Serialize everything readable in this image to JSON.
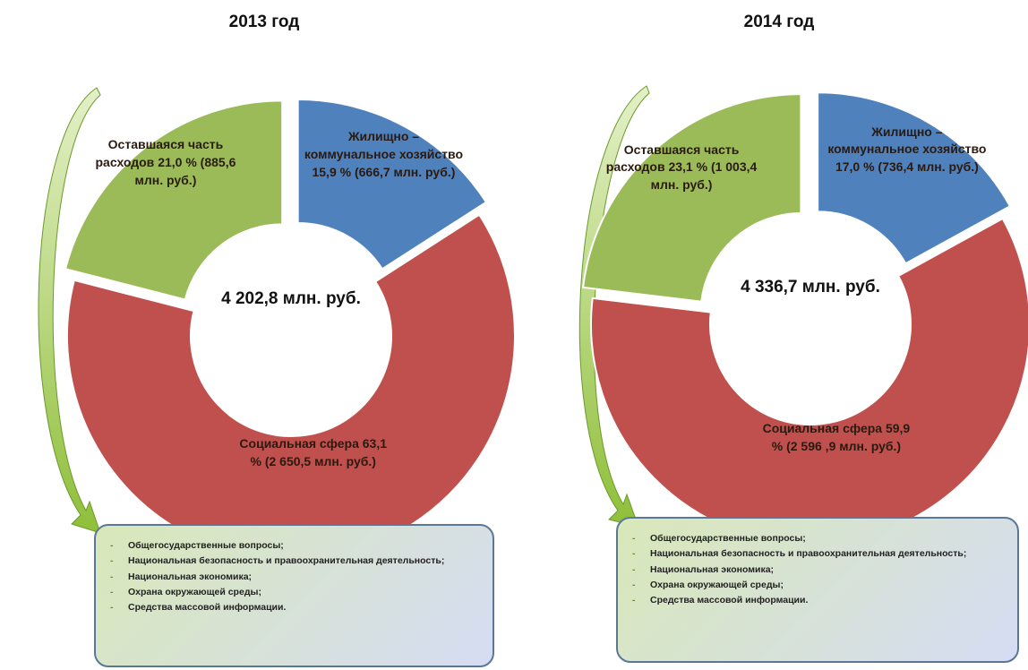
{
  "chart_data": [
    {
      "type": "donut",
      "title": "2013 год",
      "total": 4202.8,
      "total_label": "4 202,8 млн. руб.",
      "categories": [
        "Жилищно – коммунальное хозяйство",
        "Социальная сфера",
        "Оставшаяся часть расходов"
      ],
      "values": [
        15.9,
        63.1,
        21.0
      ],
      "value_labels": [
        "15,9 %",
        "63,1 %",
        "21,0 %"
      ],
      "amounts": [
        666.7,
        2650.5,
        885.6
      ],
      "amount_labels": [
        "(666,7 млн. руб.)",
        "(2 650,5 млн. руб.)",
        "(885,6 млн. руб.)"
      ],
      "colors": [
        "#4f81bd",
        "#c0504d",
        "#9bbb59"
      ],
      "details": [
        "Общегосударственные вопросы;",
        "Национальная безопасность и правоохранительная деятельность;",
        "Национальная экономика;",
        "Охрана окружающей среды;",
        "Средства массовой информации."
      ]
    },
    {
      "type": "donut",
      "title": "2014 год",
      "total": 4336.7,
      "total_label": "4 336,7 млн. руб.",
      "categories": [
        "Жилищно – коммунальное хозяйство",
        "Социальная сфера",
        "Оставшаяся часть расходов"
      ],
      "values": [
        17.0,
        59.9,
        23.1
      ],
      "value_labels": [
        "17,0 %",
        "59,9 %",
        "23,1 %"
      ],
      "amounts": [
        736.4,
        2596.9,
        1003.4
      ],
      "amount_labels": [
        "(736,4 млн. руб.)",
        "(2 596 ,9 млн. руб.)",
        "(1 003,4 млн. руб.)"
      ],
      "colors": [
        "#4f81bd",
        "#c0504d",
        "#9bbb59"
      ],
      "details": [
        "Общегосударственные вопросы;",
        "Национальная безопасность и правоохранительная деятельность;",
        "Национальная экономика;",
        "Охрана окружающей среды;",
        "Средства массовой информации."
      ]
    }
  ]
}
